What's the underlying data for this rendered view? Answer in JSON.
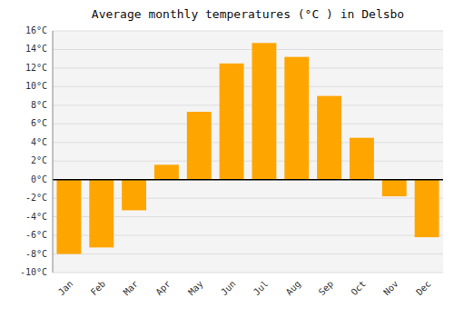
{
  "chart_data": {
    "type": "bar",
    "title": "Average monthly temperatures (°C ) in Delsbo",
    "categories": [
      "Jan",
      "Feb",
      "Mar",
      "Apr",
      "May",
      "Jun",
      "Jul",
      "Aug",
      "Sep",
      "Oct",
      "Nov",
      "Dec"
    ],
    "values": [
      -8.0,
      -7.3,
      -3.3,
      1.6,
      7.3,
      12.5,
      14.7,
      13.2,
      9.0,
      4.5,
      -1.8,
      -6.2
    ],
    "color": "#FFA500",
    "ylim": [
      -10,
      16
    ],
    "yticks": [
      {
        "value": -10,
        "label": "-10°C"
      },
      {
        "value": -8,
        "label": "-8°C"
      },
      {
        "value": -6,
        "label": "-6°C"
      },
      {
        "value": -4,
        "label": "-4°C"
      },
      {
        "value": -2,
        "label": "-2°C"
      },
      {
        "value": 0,
        "label": "0°C"
      },
      {
        "value": 2,
        "label": "2°C"
      },
      {
        "value": 4,
        "label": "4°C"
      },
      {
        "value": 6,
        "label": "6°C"
      },
      {
        "value": 8,
        "label": "8°C"
      },
      {
        "value": 10,
        "label": "10°C"
      },
      {
        "value": 12,
        "label": "12°C"
      },
      {
        "value": 14,
        "label": "14°C"
      },
      {
        "value": 16,
        "label": "16°C"
      }
    ],
    "grid": true
  }
}
